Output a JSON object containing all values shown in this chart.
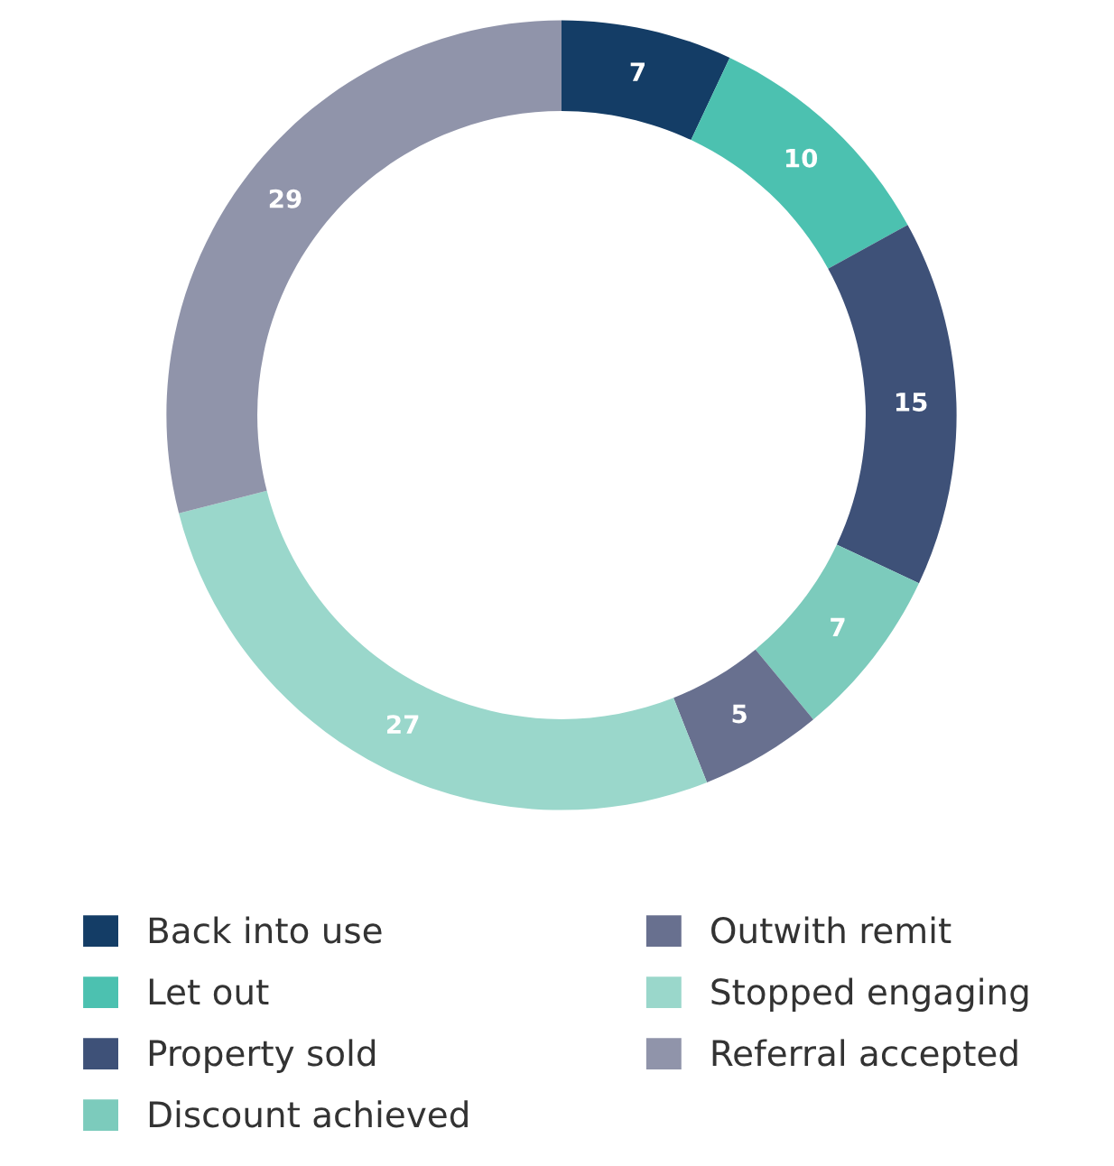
{
  "chart_data": {
    "type": "donut",
    "categories": [
      "Back into use",
      "Let out",
      "Property sold",
      "Discount achieved",
      "Outwith remit",
      "Stopped engaging",
      "Referral accepted"
    ],
    "values": [
      7,
      10,
      15,
      7,
      5,
      27,
      29
    ],
    "colors": [
      "#143d66",
      "#4cc1b0",
      "#3e5178",
      "#7ccbbc",
      "#68708f",
      "#9ad7cb",
      "#9094aa"
    ],
    "data_labels": true,
    "legend": "bottom"
  }
}
